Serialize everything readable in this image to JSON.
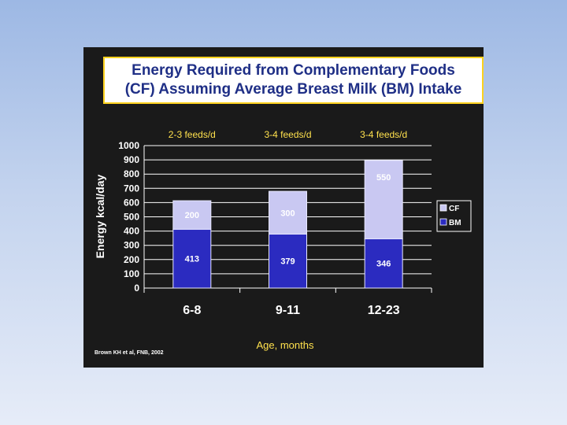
{
  "title": {
    "line1": "Energy Required from Complementary Foods",
    "line2": "(CF) Assuming Average Breast Milk (BM) Intake"
  },
  "source": "Brown KH et al, FNB, 2002",
  "colors": {
    "cf": "#c9c8f2",
    "bm": "#2b2bc0",
    "panel": "#1a1a1a",
    "title_text": "#1f2f86",
    "title_border": "#ffd21f",
    "yellow_text": "#ffe14d"
  },
  "chart_data": {
    "type": "bar",
    "stacked": true,
    "categories": [
      "6-8",
      "9-11",
      "12-23"
    ],
    "feeds": [
      "2-3 feeds/d",
      "3-4 feeds/d",
      "3-4 feeds/d"
    ],
    "series": [
      {
        "name": "BM",
        "values": [
          413,
          379,
          346
        ]
      },
      {
        "name": "CF",
        "values": [
          200,
          300,
          550
        ]
      }
    ],
    "value_labels": {
      "BM": [
        "413",
        "379",
        "346"
      ],
      "CF": [
        "200",
        "300",
        "550"
      ]
    },
    "xlabel": "Age, months",
    "ylabel": "Energy kcal/day",
    "ylim": [
      0,
      1000
    ],
    "yticks": [
      0,
      100,
      200,
      300,
      400,
      500,
      600,
      700,
      800,
      900,
      1000
    ],
    "grid": true,
    "legend": {
      "position": "right",
      "entries": [
        "CF",
        "BM"
      ]
    }
  }
}
